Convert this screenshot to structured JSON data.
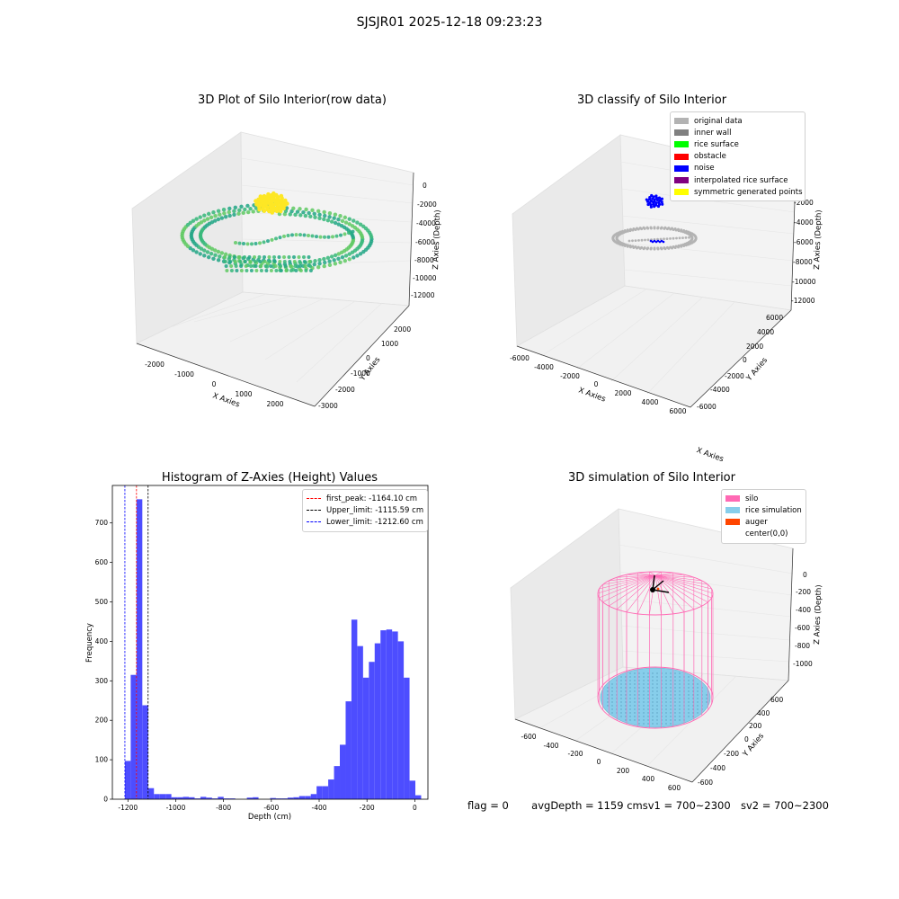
{
  "figure": {
    "suptitle": "SJSJR01 2025-12-18 09:23:23"
  },
  "footer": {
    "flag": "flag = 0",
    "avg_depth": "avgDepth = 1159 cm",
    "sv1": "sv1 = 700~2300",
    "sv2": "sv2 = 700~2300"
  },
  "colors": {
    "raw_gradient": [
      "#5ec962",
      "#35b779",
      "#21a685"
    ],
    "top_cluster": "#fde725",
    "original_data": "#b3b3b3",
    "inner_wall": "#808080",
    "rice_surface": "#00ff00",
    "obstacle": "#ff0000",
    "noise": "#0000ff",
    "interpolated_rice_surface": "#800080",
    "symmetric_generated_points": "#ffff00",
    "hist_bar": "#4d4dff",
    "silo": "#ff69b4",
    "rice_simulation": "#87ceeb",
    "auger": "#ff4500"
  },
  "chart_data": [
    {
      "type": "scatter",
      "projection": "3d",
      "title": "3D Plot of Silo Interior(row data)",
      "xlabel": "X Axies",
      "ylabel": "Y Axies",
      "zlabel": "Z Axies (Depth)",
      "x_ticks": [
        "-2000",
        "-1000",
        "0",
        "1000",
        "2000"
      ],
      "y_ticks": [
        "-3000",
        "-2000",
        "-1000",
        "0",
        "1000",
        "2000"
      ],
      "z_ticks": [
        "0",
        "-2000",
        "-4000",
        "-6000",
        "-8000",
        "-10000",
        "-12000"
      ]
    },
    {
      "type": "scatter",
      "projection": "3d",
      "title": "3D classify of Silo Interior",
      "xlabel": "X Axies",
      "ylabel": "Y Axies",
      "zlabel": "Z Axies (Depth)",
      "x_ticks": [
        "-6000",
        "-4000",
        "-2000",
        "0",
        "2000",
        "4000",
        "6000"
      ],
      "y_ticks": [
        "-6000",
        "-4000",
        "-2000",
        "0",
        "2000",
        "4000",
        "6000"
      ],
      "z_ticks": [
        "0",
        "-2000",
        "-4000",
        "-6000",
        "-8000",
        "-10000",
        "-12000"
      ],
      "legend": {
        "placement": "top-right",
        "entries": [
          "original data",
          "inner wall",
          "rice surface",
          "obstacle",
          "noise",
          "interpolated rice surface",
          "symmetric generated points"
        ]
      }
    },
    {
      "type": "bar",
      "title": "Histogram of Z-Axies (Height) Values",
      "xlabel": "Depth (cm)",
      "ylabel": "Frequency",
      "xlim": [
        -1265,
        55
      ],
      "ylim": [
        0,
        795
      ],
      "x_ticks": [
        -1200,
        -1000,
        -800,
        -600,
        -400,
        -200,
        0
      ],
      "y_ticks": [
        0,
        100,
        200,
        300,
        400,
        500,
        600,
        700
      ],
      "bin_width": 24.3,
      "bin_edges_start": -1212.6,
      "values": [
        97,
        315,
        760,
        238,
        28,
        13,
        13,
        13,
        5,
        5,
        6,
        5,
        2,
        6,
        4,
        2,
        6,
        2,
        2,
        0,
        0,
        4,
        5,
        0,
        0,
        3,
        2,
        2,
        4,
        5,
        8,
        8,
        13,
        33,
        33,
        50,
        84,
        138,
        248,
        455,
        388,
        308,
        348,
        395,
        428,
        430,
        425,
        400,
        308,
        47,
        10
      ],
      "vlines": [
        {
          "label": "first_peak: -1164.10 cm",
          "x": -1164.1,
          "color": "#ff0000"
        },
        {
          "label": "Upper_limit: -1115.59 cm",
          "x": -1115.59,
          "color": "#000000"
        },
        {
          "label": "Lower_limit: -1212.60 cm",
          "x": -1212.6,
          "color": "#0000ff"
        }
      ],
      "legend": {
        "placement": "top-right"
      }
    },
    {
      "type": "scatter",
      "projection": "3d",
      "title": "3D simulation of Silo Interior",
      "xlabel": "X Axies",
      "ylabel": "Y Axies",
      "zlabel": "Z Axies (Depth)",
      "x_ticks": [
        "-600",
        "-400",
        "-200",
        "0",
        "200",
        "400",
        "600"
      ],
      "y_ticks": [
        "-600",
        "-400",
        "-200",
        "0",
        "200",
        "400",
        "600"
      ],
      "z_ticks": [
        "0",
        "-200",
        "-400",
        "-600",
        "-800",
        "-1000"
      ],
      "legend": {
        "placement": "top-right",
        "entries": [
          "silo",
          "rice simulation",
          "auger",
          "center(0,0)"
        ]
      }
    }
  ]
}
